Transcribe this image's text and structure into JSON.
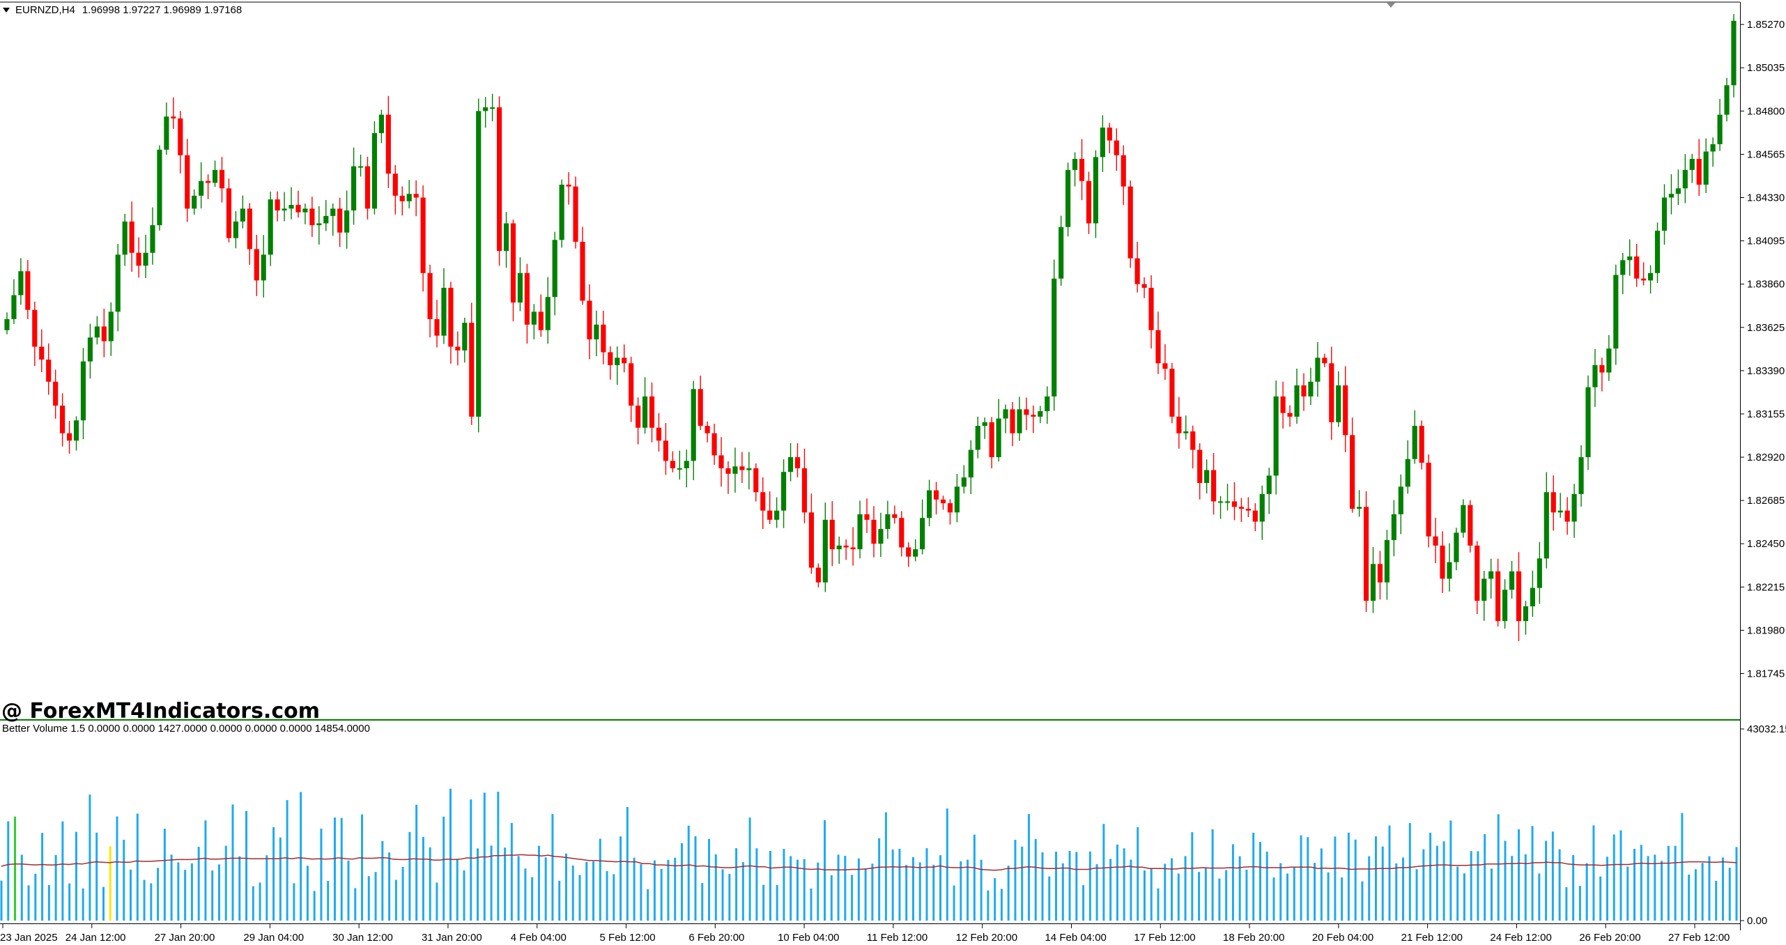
{
  "header": {
    "symbol": "EURNZD,H4",
    "ohlc": "1.96998 1.97227 1.96989 1.97168"
  },
  "watermark": "@ ForexMT4Indicators.com",
  "indicator_header": "Better Volume 1.5 0.0000 0.0000 1427.0000 0.0000 0.0000 0.0000 14854.0000",
  "colors": {
    "bull": "#008000",
    "bear": "#ff0000",
    "vol_normal": "#1eaaf0",
    "vol_green": "#32cd32",
    "vol_red": "#dc0000",
    "vol_yellow": "#ffe600",
    "vol_avg": "#a52a2a",
    "separator": "#008000"
  },
  "chart_data": [
    {
      "type": "candlestick",
      "symbol": "EURNZD",
      "timeframe": "H4",
      "ylim": [
        1.8155,
        1.8535
      ],
      "y_ticks": [
        "1.85270",
        "1.85035",
        "1.84800",
        "1.84565",
        "1.84330",
        "1.84095",
        "1.83860",
        "1.83625",
        "1.83390",
        "1.83155",
        "1.82920",
        "1.82685",
        "1.82450",
        "1.82215",
        "1.81980",
        "1.81745"
      ],
      "x_ticks": [
        "23 Jan 2025",
        "24 Jan 12:00",
        "27 Jan 20:00",
        "29 Jan 04:00",
        "30 Jan 12:00",
        "31 Jan 20:00",
        "4 Feb 04:00",
        "5 Feb 12:00",
        "6 Feb 20:00",
        "10 Feb 04:00",
        "11 Feb 12:00",
        "12 Feb 20:00",
        "14 Feb 04:00",
        "17 Feb 12:00",
        "18 Feb 20:00",
        "20 Feb 04:00",
        "21 Feb 12:00",
        "24 Feb 12:00",
        "26 Feb 20:00",
        "27 Feb 12:00"
      ],
      "close": [
        1.8367,
        1.838,
        1.8393,
        1.8372,
        1.8352,
        1.8345,
        1.8333,
        1.832,
        1.8305,
        1.8301,
        1.8312,
        1.8344,
        1.8357,
        1.8363,
        1.8355,
        1.8371,
        1.8402,
        1.842,
        1.8403,
        1.8396,
        1.8403,
        1.8418,
        1.8459,
        1.8477,
        1.8476,
        1.8456,
        1.8427,
        1.8434,
        1.8442,
        1.8441,
        1.8448,
        1.8438,
        1.8411,
        1.842,
        1.8427,
        1.8405,
        1.8388,
        1.8402,
        1.8432,
        1.8426,
        1.8427,
        1.8429,
        1.8425,
        1.8427,
        1.8418,
        1.8419,
        1.8423,
        1.8427,
        1.8414,
        1.8426,
        1.845,
        1.845,
        1.8427,
        1.8468,
        1.8478,
        1.8446,
        1.8434,
        1.8431,
        1.8435,
        1.8433,
        1.8392,
        1.8367,
        1.8358,
        1.8384,
        1.8352,
        1.835,
        1.8365,
        1.8314,
        1.848,
        1.8482,
        1.8482,
        1.8404,
        1.8419,
        1.8376,
        1.8392,
        1.8364,
        1.8371,
        1.8361,
        1.8379,
        1.841,
        1.844,
        1.8439,
        1.8409,
        1.8377,
        1.8356,
        1.8364,
        1.8349,
        1.8342,
        1.8346,
        1.8343,
        1.832,
        1.8308,
        1.8325,
        1.8308,
        1.8301,
        1.829,
        1.8286,
        1.8286,
        1.829,
        1.8329,
        1.8309,
        1.8305,
        1.8293,
        1.8286,
        1.8283,
        1.8287,
        1.8285,
        1.8286,
        1.8273,
        1.8263,
        1.8258,
        1.8263,
        1.8284,
        1.8292,
        1.8286,
        1.8262,
        1.8232,
        1.8224,
        1.8258,
        1.8242,
        1.8244,
        1.8243,
        1.8242,
        1.8261,
        1.8258,
        1.8245,
        1.8253,
        1.8261,
        1.8259,
        1.8243,
        1.8238,
        1.8242,
        1.8259,
        1.8274,
        1.8269,
        1.8267,
        1.8262,
        1.8276,
        1.8281,
        1.8296,
        1.8309,
        1.8311,
        1.8292,
        1.8313,
        1.8318,
        1.8305,
        1.8318,
        1.8315,
        1.8314,
        1.8317,
        1.8325,
        1.8389,
        1.8417,
        1.8448,
        1.8454,
        1.8442,
        1.8419,
        1.8455,
        1.8471,
        1.8464,
        1.8456,
        1.8439,
        1.84,
        1.8386,
        1.8384,
        1.8361,
        1.8343,
        1.834,
        1.8314,
        1.8305,
        1.8306,
        1.8296,
        1.8278,
        1.8285,
        1.8268,
        1.8268,
        1.8268,
        1.8265,
        1.8264,
        1.8263,
        1.8257,
        1.8272,
        1.8282,
        1.8325,
        1.8316,
        1.8314,
        1.8331,
        1.8325,
        1.8333,
        1.8346,
        1.8343,
        1.8311,
        1.8331,
        1.8304,
        1.8264,
        1.8265,
        1.8214,
        1.8234,
        1.8224,
        1.8247,
        1.8261,
        1.8276,
        1.8291,
        1.8309,
        1.8289,
        1.8249,
        1.8244,
        1.8226,
        1.8235,
        1.8251,
        1.8266,
        1.8244,
        1.8214,
        1.8226,
        1.823,
        1.8203,
        1.822,
        1.823,
        1.8203,
        1.8211,
        1.8221,
        1.8237,
        1.8273,
        1.8262,
        1.8263,
        1.8257,
        1.8272,
        1.8292,
        1.833,
        1.8342,
        1.8338,
        1.8351,
        1.8391,
        1.8399,
        1.8401,
        1.8389,
        1.8388,
        1.8392,
        1.8415,
        1.8433,
        1.8435,
        1.8438,
        1.8448,
        1.8454,
        1.844,
        1.8458,
        1.8462,
        1.8478,
        1.8494,
        1.8529
      ],
      "last_close": 1.8529
    },
    {
      "type": "bar",
      "name": "Better Volume 1.5",
      "ylim": [
        0,
        43032.15
      ],
      "y_ticks": [
        "43032.15",
        "0.00"
      ],
      "avg_period": 20,
      "values": [
        8980,
        22300,
        23350,
        14780,
        7910,
        10530,
        19690,
        7990,
        14720,
        22270,
        8350,
        19930,
        7230,
        28290,
        19760,
        7560,
        16700,
        23390,
        18160,
        11440,
        24010,
        9150,
        8370,
        11840,
        20640,
        14800,
        13090,
        11410,
        12850,
        16570,
        22500,
        11240,
        12620,
        16810,
        26080,
        14430,
        24620,
        7720,
        8540,
        14670,
        20960,
        18670,
        27060,
        8390,
        28880,
        12330,
        6660,
        20650,
        8920,
        23140,
        23060,
        13480,
        7280,
        23840,
        10000,
        10910,
        17830,
        15290,
        9150,
        12050,
        19910,
        26010,
        18790,
        16460,
        8540,
        23340,
        29620,
        13740,
        11270,
        27200,
        16220,
        28730,
        16840,
        28950,
        16390,
        21930,
        14490,
        11700,
        9760,
        16810,
        14210,
        23930,
        8940,
        15070,
        12350,
        10250,
        13190,
        13300,
        18380,
        11110,
        10420,
        18920,
        25500,
        14130,
        12690,
        7060,
        13520,
        11580,
        13660,
        14120,
        17410,
        21330,
        18930,
        8460,
        18340,
        14870,
        11520,
        10460,
        16260,
        13130,
        23140,
        16230,
        8040,
        15650,
        7990,
        16120,
        14480,
        13670,
        13830,
        7210,
        13040,
        22550,
        10200,
        14810,
        14550,
        10260,
        13960,
        11720,
        12800,
        18490,
        24330,
        15960,
        16110,
        12490,
        14240,
        13090,
        16260,
        12540,
        14680,
        25180,
        7880,
        13310,
        13680,
        19300,
        13650,
        6770,
        9540,
        7130,
        12340,
        18150,
        16600,
        23930,
        18330,
        15340,
        9920,
        15480,
        12870,
        15640,
        15410,
        7960,
        15510,
        12660,
        21720,
        13850,
        17080,
        16230,
        13690,
        20990,
        11280,
        11830,
        7240,
        12770,
        14000,
        10560,
        14480,
        19850,
        10920,
        11760,
        20500,
        9450,
        11350,
        17160,
        14460,
        11430,
        19740,
        17690,
        15470,
        9690,
        12910,
        10560,
        11910,
        19150,
        18740,
        12970,
        16210,
        10840,
        18880,
        9700,
        19760,
        18190,
        8800,
        14450,
        18920,
        16640,
        21340,
        12850,
        14170,
        21910,
        11550,
        16010,
        19740,
        16800,
        17800,
        22470,
        12120,
        10600,
        15610,
        15570,
        19420,
        11670,
        23880,
        17920,
        14520,
        20500,
        14900,
        21240,
        10590,
        17910,
        20000,
        16010,
        7510,
        14710,
        7800,
        12890,
        21380,
        9900,
        14340,
        19340,
        20270,
        12120,
        16120,
        17020,
        14500,
        14810,
        13410,
        16780,
        16800,
        24150,
        10320,
        11540,
        12940,
        14450,
        8920,
        14190,
        11880,
        16530
      ],
      "avg": [
        12200,
        12600,
        12700,
        12700,
        12600,
        12500,
        12600,
        12500,
        12500,
        12700,
        12600,
        12800,
        12700,
        13000,
        13200,
        13100,
        13000,
        13200,
        13100,
        13100,
        13400,
        13300,
        13300,
        13400,
        13500,
        13600,
        13700,
        13700,
        13700,
        13800,
        14000,
        13800,
        13800,
        13900,
        14000,
        14000,
        14000,
        13900,
        13900,
        13900,
        13900,
        13900,
        14100,
        13900,
        14100,
        14000,
        13800,
        13900,
        13800,
        13900,
        14100,
        13900,
        13800,
        14100,
        14000,
        14000,
        14100,
        14100,
        13800,
        13700,
        13700,
        13900,
        13800,
        13800,
        13600,
        13600,
        13800,
        13700,
        13800,
        14100,
        14000,
        14300,
        14300,
        14600,
        14600,
        14700,
        14700,
        14800,
        14700,
        14700,
        14500,
        14700,
        14400,
        14300,
        14100,
        13900,
        13700,
        13500,
        13500,
        13400,
        13300,
        13200,
        13300,
        13200,
        13200,
        12800,
        12800,
        12500,
        12500,
        12400,
        12300,
        12400,
        12500,
        12200,
        12300,
        12100,
        12000,
        11900,
        11900,
        12000,
        12200,
        12300,
        12100,
        12100,
        11800,
        11900,
        12000,
        12000,
        11800,
        11600,
        11500,
        11600,
        11400,
        11400,
        11400,
        11400,
        11500,
        11500,
        11600,
        11800,
        12000,
        12000,
        12100,
        12000,
        12100,
        12000,
        11900,
        12000,
        12000,
        12300,
        12000,
        11900,
        11900,
        12000,
        11900,
        11500,
        11400,
        11300,
        11400,
        11700,
        11700,
        11900,
        12100,
        12000,
        11800,
        11700,
        11700,
        11800,
        11800,
        11500,
        11500,
        11500,
        11800,
        11800,
        11900,
        12000,
        12000,
        12200,
        12000,
        12000,
        11700,
        11700,
        11700,
        11600,
        11600,
        11800,
        11700,
        11800,
        11900,
        11800,
        11800,
        11800,
        11900,
        11800,
        12000,
        12100,
        12100,
        11900,
        11900,
        11900,
        11900,
        12000,
        12000,
        12000,
        12000,
        11700,
        11800,
        11700,
        11800,
        11700,
        11500,
        11600,
        11600,
        11600,
        11700,
        11700,
        11700,
        11900,
        11900,
        12000,
        12200,
        12300,
        12400,
        12500,
        12500,
        12400,
        12400,
        12400,
        12500,
        12500,
        12700,
        12700,
        12700,
        12800,
        12800,
        12900,
        12800,
        13000,
        13000,
        13100,
        13000,
        13000,
        12700,
        12600,
        12500,
        12500,
        12500,
        12400,
        12500,
        12600,
        12600,
        12600,
        12800,
        12900,
        12800,
        12800,
        12900,
        12900,
        13000,
        13100,
        13200,
        13200,
        13200,
        13100,
        13100,
        13200,
        13100,
        13000
      ],
      "colored_bars": {
        "red": [
          10,
          62,
          263,
          289,
          310,
          330,
          370,
          430
        ],
        "green": [
          22,
          39,
          85,
          147,
          341,
          415,
          528,
          641,
          693
        ],
        "yellow": [
          35,
          158,
          186,
          288,
          356
        ]
      }
    }
  ]
}
